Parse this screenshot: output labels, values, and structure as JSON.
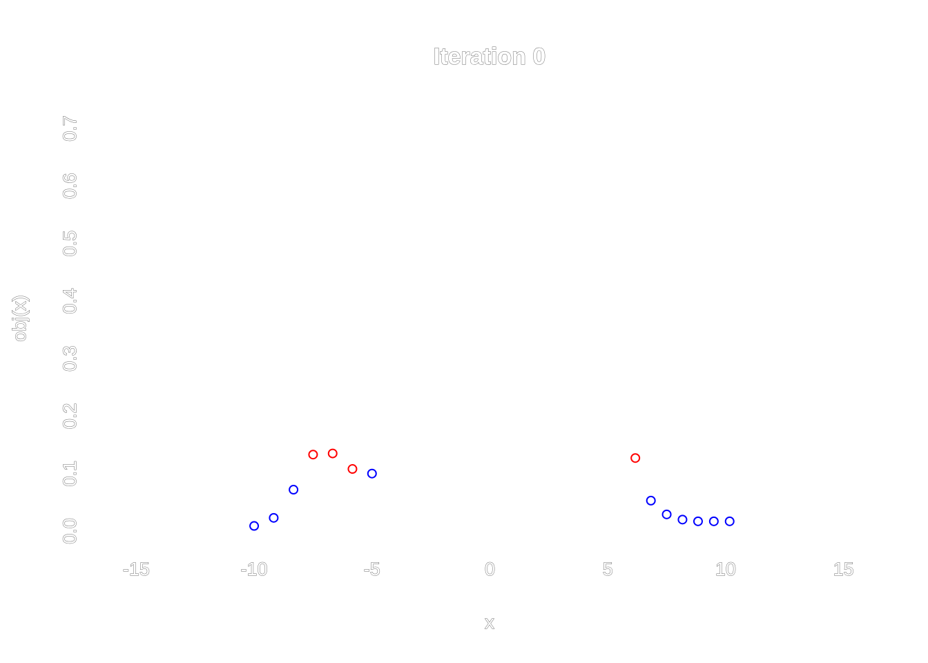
{
  "chart_data": {
    "type": "scatter",
    "title": "Iteration 0",
    "xlabel": "x",
    "ylabel": "obj(x)",
    "xlim": [
      -17.5,
      17.5
    ],
    "ylim": [
      -0.03,
      0.76
    ],
    "xticks": [
      -15,
      -10,
      -5,
      0,
      5,
      10,
      15
    ],
    "xtick_labels": [
      "-15",
      "-10",
      "-5",
      "0",
      "5",
      "10",
      "15"
    ],
    "yticks": [
      0.0,
      0.1,
      0.2,
      0.3,
      0.4,
      0.5,
      0.6,
      0.7
    ],
    "ytick_labels": [
      "0.0",
      "0.1",
      "0.2",
      "0.3",
      "0.4",
      "0.5",
      "0.6",
      "0.7"
    ],
    "grid": false,
    "series": [
      {
        "color": "#0000ff",
        "marker": "open-circle",
        "points": [
          {
            "x": -10.0,
            "y": 0.009
          },
          {
            "x": -9.17,
            "y": 0.023
          },
          {
            "x": -8.33,
            "y": 0.072
          },
          {
            "x": -5.0,
            "y": 0.1
          },
          {
            "x": 6.83,
            "y": 0.053
          },
          {
            "x": 7.5,
            "y": 0.029
          },
          {
            "x": 8.17,
            "y": 0.02
          },
          {
            "x": 8.83,
            "y": 0.017
          },
          {
            "x": 9.5,
            "y": 0.017
          },
          {
            "x": 10.17,
            "y": 0.017
          }
        ]
      },
      {
        "color": "#ff0000",
        "marker": "open-circle",
        "points": [
          {
            "x": -7.5,
            "y": 0.133
          },
          {
            "x": -6.67,
            "y": 0.135
          },
          {
            "x": -5.83,
            "y": 0.108
          },
          {
            "x": 6.17,
            "y": 0.127
          }
        ]
      }
    ]
  }
}
